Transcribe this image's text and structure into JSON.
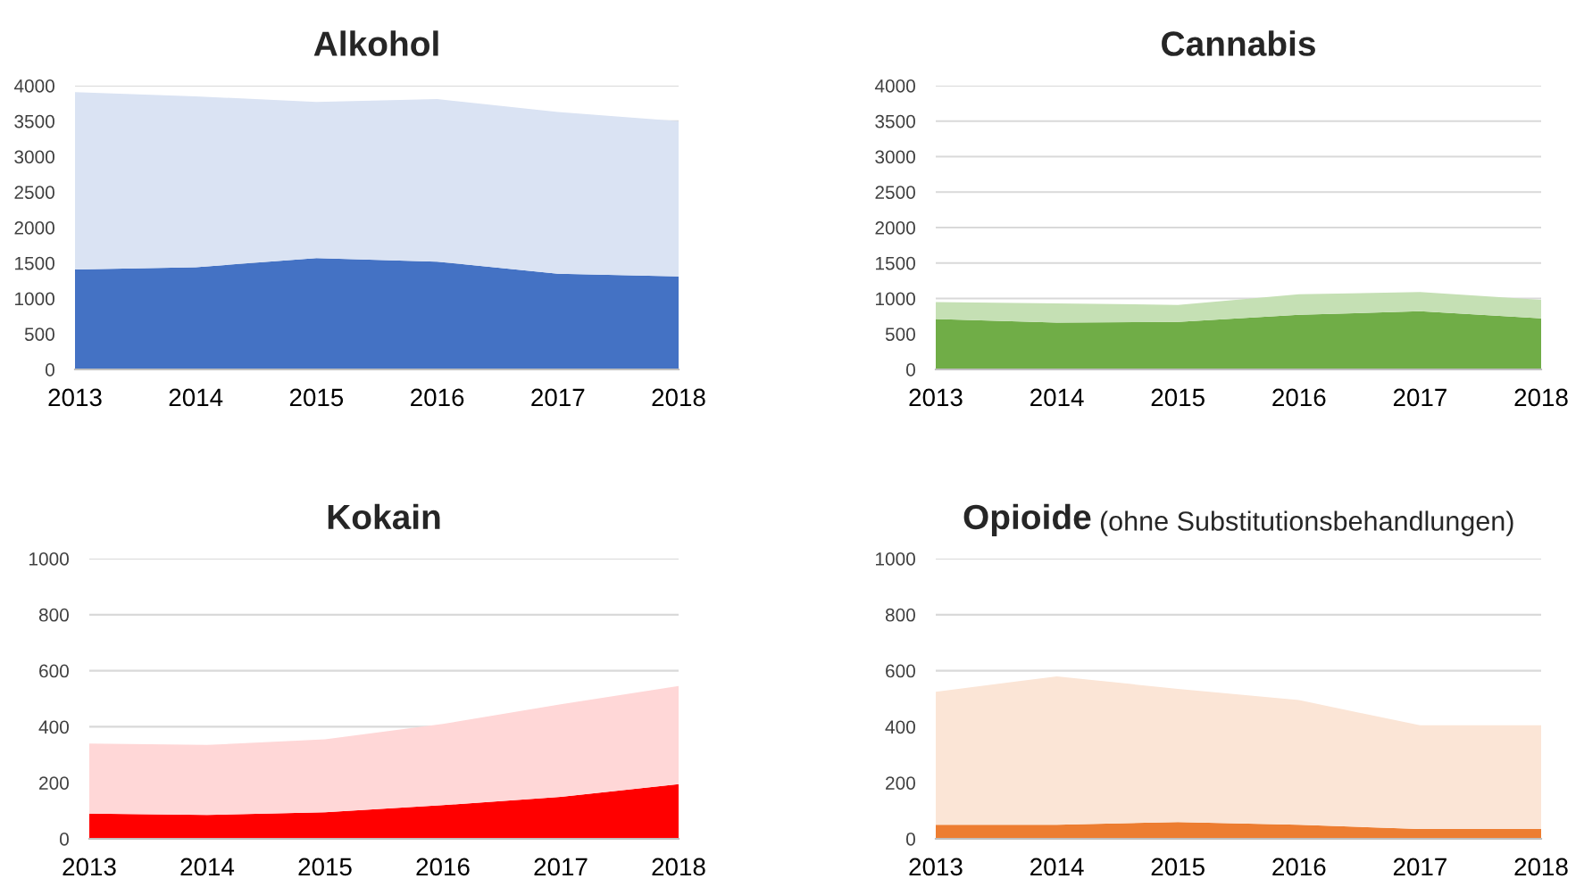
{
  "chart_data": [
    {
      "type": "area",
      "stacked": true,
      "title": "Alkohol",
      "categories": [
        "2013",
        "2014",
        "2015",
        "2016",
        "2017",
        "2018"
      ],
      "ylim": [
        0,
        4000
      ],
      "yticks": [
        0,
        500,
        1000,
        1500,
        2000,
        2500,
        3000,
        3500,
        4000
      ],
      "grid": "y",
      "series": [
        {
          "color": "#4472c4",
          "values": [
            1410,
            1440,
            1570,
            1520,
            1350,
            1310
          ]
        },
        {
          "color": "#dae3f3",
          "values": [
            2500,
            2410,
            2200,
            2290,
            2280,
            2190
          ]
        }
      ]
    },
    {
      "type": "area",
      "stacked": true,
      "title": "Cannabis",
      "categories": [
        "2013",
        "2014",
        "2015",
        "2016",
        "2017",
        "2018"
      ],
      "ylim": [
        0,
        4000
      ],
      "yticks": [
        0,
        500,
        1000,
        1500,
        2000,
        2500,
        3000,
        3500,
        4000
      ],
      "grid": "y",
      "series": [
        {
          "color": "#70ad47",
          "values": [
            710,
            660,
            670,
            770,
            820,
            720
          ]
        },
        {
          "color": "#c5e0b4",
          "values": [
            240,
            270,
            240,
            290,
            270,
            260
          ]
        }
      ]
    },
    {
      "type": "area",
      "stacked": true,
      "title": "Kokain",
      "categories": [
        "2013",
        "2014",
        "2015",
        "2016",
        "2017",
        "2018"
      ],
      "ylim": [
        0,
        1000
      ],
      "yticks": [
        0,
        200,
        400,
        600,
        800,
        1000
      ],
      "grid": "y",
      "series": [
        {
          "color": "#ff0000",
          "values": [
            90,
            85,
            95,
            120,
            150,
            195
          ]
        },
        {
          "color": "#ffd7d7",
          "values": [
            250,
            250,
            260,
            290,
            330,
            350
          ]
        }
      ]
    },
    {
      "type": "area",
      "stacked": true,
      "title": "Opioide",
      "subtitle": "(ohne Substitutionsbehandlungen)",
      "categories": [
        "2013",
        "2014",
        "2015",
        "2016",
        "2017",
        "2018"
      ],
      "ylim": [
        0,
        1000
      ],
      "yticks": [
        0,
        200,
        400,
        600,
        800,
        1000
      ],
      "grid": "y",
      "series": [
        {
          "color": "#ed7d31",
          "values": [
            50,
            50,
            60,
            50,
            35,
            35
          ]
        },
        {
          "color": "#fbe5d6",
          "values": [
            475,
            530,
            475,
            445,
            370,
            370
          ]
        }
      ]
    }
  ]
}
